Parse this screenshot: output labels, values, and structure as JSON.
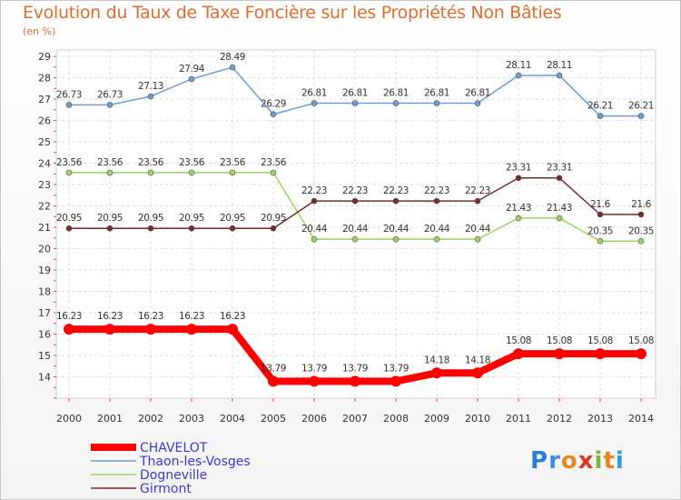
{
  "title": "Evolution du Taux de Taxe Foncière sur les Propriétés Non Bâties",
  "subtitle": "(en %)",
  "brand": {
    "text": "Proxiti",
    "letter_colors": [
      "#2a7fd4",
      "#3a8fdc",
      "#e8871e",
      "#d83a2a",
      "#7bb63a",
      "#e8871e",
      "#2a9fd4"
    ]
  },
  "chart_data": {
    "type": "line",
    "x": [
      "2000",
      "2001",
      "2002",
      "2003",
      "2004",
      "2005",
      "2006",
      "2007",
      "2008",
      "2009",
      "2010",
      "2011",
      "2012",
      "2013",
      "2014"
    ],
    "y_ticks": [
      14,
      15,
      16,
      17,
      18,
      19,
      20,
      21,
      22,
      23,
      24,
      25,
      26,
      27,
      28,
      29
    ],
    "ylim": [
      13,
      29.3
    ],
    "grid": true,
    "legend_position": "bottom-left",
    "series": [
      {
        "name": "CHAVELOT",
        "color": "#ff0000",
        "values": [
          16.23,
          16.23,
          16.23,
          16.23,
          16.23,
          13.79,
          13.79,
          13.79,
          13.79,
          14.18,
          14.18,
          15.08,
          15.08,
          15.08,
          15.08
        ],
        "labels": [
          "16.23",
          "16.23",
          "16.23",
          "16.23",
          "16.23",
          "13.79",
          "13.79",
          "13.79",
          "13.79",
          "14.18",
          "14.18",
          "15.08",
          "15.08",
          "15.08",
          "15.08"
        ]
      },
      {
        "name": "Thaon-les-Vosges",
        "color": "#6a9fd4",
        "values": [
          26.73,
          26.73,
          27.13,
          27.94,
          28.49,
          26.29,
          26.81,
          26.81,
          26.81,
          26.81,
          26.81,
          28.11,
          28.11,
          26.21,
          26.21
        ],
        "labels": [
          "26.73",
          "26.73",
          "27.13",
          "27.94",
          "28.49",
          "26.29",
          "26.81",
          "26.81",
          "26.81",
          "26.81",
          "26.81",
          "28.11",
          "28.11",
          "26.21",
          "26.21"
        ]
      },
      {
        "name": "Dogneville",
        "color": "#99d65e",
        "values": [
          23.56,
          23.56,
          23.56,
          23.56,
          23.56,
          23.56,
          20.44,
          20.44,
          20.44,
          20.44,
          20.44,
          21.43,
          21.43,
          20.35,
          20.35
        ],
        "labels": [
          "23.56",
          "23.56",
          "23.56",
          "23.56",
          "23.56",
          "23.56",
          "20.44",
          "20.44",
          "20.44",
          "20.44",
          "20.44",
          "21.43",
          "21.43",
          "20.35",
          "20.35"
        ]
      },
      {
        "name": "Girmont",
        "color": "#7a2a2a",
        "values": [
          20.95,
          20.95,
          20.95,
          20.95,
          20.95,
          20.95,
          22.23,
          22.23,
          22.23,
          22.23,
          22.23,
          23.31,
          23.31,
          21.6,
          21.6
        ],
        "labels": [
          "20.95",
          "20.95",
          "20.95",
          "20.95",
          "20.95",
          "20.95",
          "22.23",
          "22.23",
          "22.23",
          "22.23",
          "22.23",
          "23.31",
          "23.31",
          "21.6",
          "21.6"
        ]
      }
    ]
  }
}
